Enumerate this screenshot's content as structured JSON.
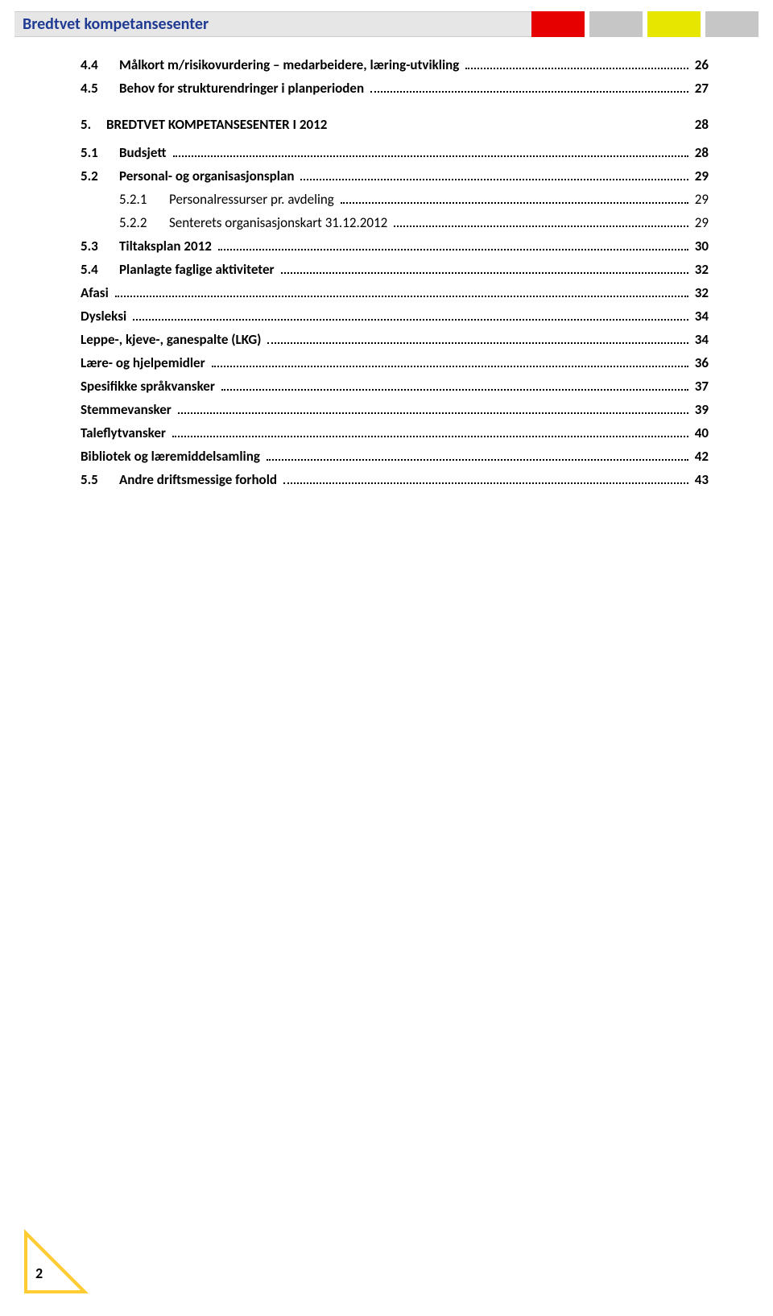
{
  "header": {
    "title": "Bredtvet kompetansesenter",
    "title_color": "#1f3a93",
    "title_bg": "#e6e6e6",
    "blocks": [
      {
        "color": "#e60000"
      },
      {
        "color": "#c6c6c6"
      },
      {
        "color": "#e6e600"
      },
      {
        "color": "#c6c6c6"
      }
    ]
  },
  "toc": [
    {
      "type": "item",
      "level": 1,
      "num": "4.4",
      "label": "Målkort m/risikovurdering – medarbeidere, læring-utvikling",
      "page": "26",
      "bold": true
    },
    {
      "type": "item",
      "level": 1,
      "num": "4.5",
      "label": "Behov for strukturendringer i planperioden",
      "page": "27",
      "bold": true
    },
    {
      "type": "section",
      "num": "5.",
      "label": "BREDTVET KOMPETANSESENTER I 2012",
      "page": "28"
    },
    {
      "type": "item",
      "level": 1,
      "num": "5.1",
      "label": "Budsjett",
      "page": "28",
      "bold": true
    },
    {
      "type": "item",
      "level": 1,
      "num": "5.2",
      "label": "Personal- og organisasjonsplan",
      "page": "29",
      "bold": true
    },
    {
      "type": "item",
      "level": 2,
      "num": "5.2.1",
      "label": "Personalressurser pr. avdeling",
      "page": "29",
      "bold": false
    },
    {
      "type": "item",
      "level": 2,
      "num": "5.2.2",
      "label": "Senterets organisasjonskart 31.12.2012",
      "page": "29",
      "bold": false
    },
    {
      "type": "item",
      "level": 1,
      "num": "5.3",
      "label": "Tiltaksplan 2012",
      "page": "30",
      "bold": true
    },
    {
      "type": "item",
      "level": 1,
      "num": "5.4",
      "label": "Planlagte faglige aktiviteter",
      "page": "32",
      "bold": true
    },
    {
      "type": "item",
      "level": -1,
      "num": "",
      "label": "Afasi",
      "page": "32",
      "bold": true
    },
    {
      "type": "item",
      "level": -1,
      "num": "",
      "label": "Dysleksi",
      "page": "34",
      "bold": true
    },
    {
      "type": "item",
      "level": -1,
      "num": "",
      "label": "Leppe-, kjeve-, ganespalte (LKG)",
      "page": "34",
      "bold": true
    },
    {
      "type": "item",
      "level": -1,
      "num": "",
      "label": "Lære- og hjelpemidler",
      "page": "36",
      "bold": true
    },
    {
      "type": "item",
      "level": -1,
      "num": "",
      "label": "Spesifikke språkvansker",
      "page": "37",
      "bold": true
    },
    {
      "type": "item",
      "level": -1,
      "num": "",
      "label": "Stemmevansker",
      "page": "39",
      "bold": true
    },
    {
      "type": "item",
      "level": -1,
      "num": "",
      "label": "Taleflytvansker",
      "page": "40",
      "bold": true
    },
    {
      "type": "item",
      "level": -1,
      "num": "",
      "label": "Bibliotek og læremiddelsamling",
      "page": "42",
      "bold": true
    },
    {
      "type": "item",
      "level": 1,
      "num": "5.5",
      "label": "Andre driftsmessige forhold",
      "page": "43",
      "bold": true
    }
  ],
  "page_number": "2",
  "triangle": {
    "outer_color": "#ffcc33",
    "inner_color": "#ffffff"
  }
}
